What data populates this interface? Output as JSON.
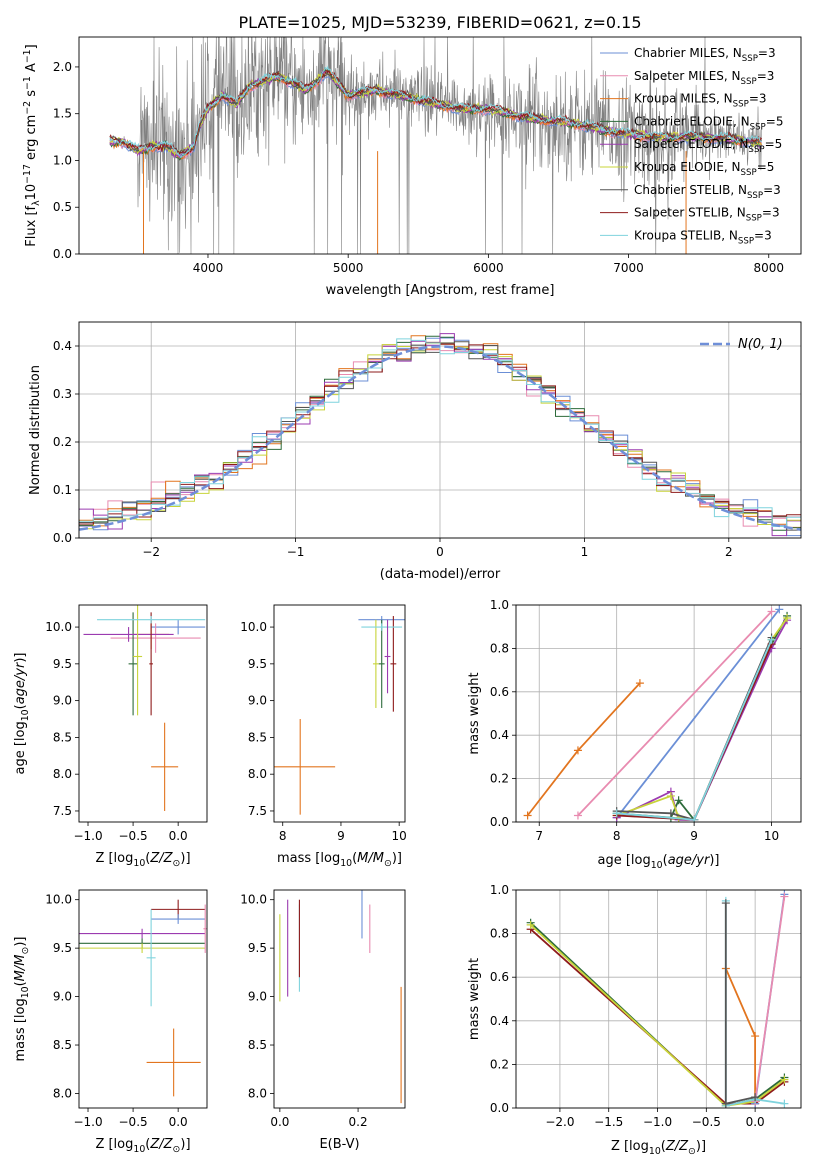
{
  "title": "PLATE=1025, MJD=53239, FIBERID=0621, z=0.15",
  "colors": {
    "chabrier_miles": "#6b8fd6",
    "salpeter_miles": "#e88bb0",
    "kroupa_miles": "#e2751f",
    "chabrier_elodie": "#2d6b3a",
    "salpeter_elodie": "#9b3bb0",
    "kroupa_elodie": "#c8d43a",
    "chabrier_stelib": "#555555",
    "salpeter_stelib": "#8e1b1b",
    "kroupa_stelib": "#7fd3dd",
    "data": "#808080",
    "normal": "#6f8fd8"
  },
  "chart_data": [
    {
      "id": "spectrum",
      "type": "line",
      "xlabel": "wavelength [Angstrom, rest frame]",
      "ylabel": "Flux [f",
      "xlim": [
        3080,
        8230
      ],
      "ylim": [
        0,
        2.32
      ],
      "xticks": [
        4000,
        5000,
        6000,
        7000,
        8000
      ],
      "yticks": [
        0.0,
        0.5,
        1.0,
        1.5,
        2.0
      ],
      "legend_position": "right",
      "legend": [
        {
          "prefix": "Chabrier MILES, N",
          "sub": "SSP",
          "suffix": "=3",
          "color_key": "chabrier_miles"
        },
        {
          "prefix": "Salpeter MILES, N",
          "sub": "SSP",
          "suffix": "=3",
          "color_key": "salpeter_miles"
        },
        {
          "prefix": "Kroupa MILES, N",
          "sub": "SSP",
          "suffix": "=3",
          "color_key": "kroupa_miles"
        },
        {
          "prefix": "Chabrier ELODIE, N",
          "sub": "SSP",
          "suffix": "=5",
          "color_key": "chabrier_elodie"
        },
        {
          "prefix": "Salpeter ELODIE, N",
          "sub": "SSP",
          "suffix": "=5",
          "color_key": "salpeter_elodie"
        },
        {
          "prefix": "Kroupa ELODIE, N",
          "sub": "SSP",
          "suffix": "=5",
          "color_key": "kroupa_elodie"
        },
        {
          "prefix": "Chabrier STELIB, N",
          "sub": "SSP",
          "suffix": "=3",
          "color_key": "chabrier_stelib"
        },
        {
          "prefix": "Salpeter STELIB, N",
          "sub": "SSP",
          "suffix": "=3",
          "color_key": "salpeter_stelib"
        },
        {
          "prefix": "Kroupa STELIB, N",
          "sub": "SSP",
          "suffix": "=3",
          "color_key": "kroupa_stelib"
        }
      ],
      "continuum": [
        [
          3300,
          1.2
        ],
        [
          3400,
          1.2
        ],
        [
          3500,
          1.1
        ],
        [
          3600,
          1.15
        ],
        [
          3700,
          1.15
        ],
        [
          3800,
          1.05
        ],
        [
          3900,
          1.15
        ],
        [
          3950,
          1.4
        ],
        [
          4000,
          1.55
        ],
        [
          4100,
          1.7
        ],
        [
          4200,
          1.6
        ],
        [
          4300,
          1.8
        ],
        [
          4500,
          1.9
        ],
        [
          4700,
          1.75
        ],
        [
          4850,
          1.95
        ],
        [
          5000,
          1.7
        ],
        [
          5200,
          1.75
        ],
        [
          5500,
          1.65
        ],
        [
          5800,
          1.55
        ],
        [
          6000,
          1.55
        ],
        [
          6300,
          1.45
        ],
        [
          6600,
          1.4
        ],
        [
          6900,
          1.3
        ],
        [
          7200,
          1.25
        ],
        [
          7500,
          1.25
        ],
        [
          7800,
          1.22
        ],
        [
          7950,
          1.18
        ]
      ]
    },
    {
      "id": "residuals",
      "type": "line",
      "xlabel": "(data-model)/error",
      "ylabel": "Normed distribution",
      "xlim": [
        -2.5,
        2.5
      ],
      "ylim": [
        0,
        0.45
      ],
      "xticks": [
        -2,
        -1,
        0,
        1,
        2
      ],
      "yticks": [
        0.0,
        0.1,
        0.2,
        0.3,
        0.4
      ],
      "grid": true,
      "legend_position": "upper right",
      "normal_label": "N(0, 1)",
      "bin_width": 0.1
    },
    {
      "id": "age_vs_z",
      "type": "scatter",
      "xlabel": "Z [log",
      "ylabel": "age  [log",
      "xlim": [
        -1.1,
        0.32
      ],
      "ylim": [
        7.35,
        10.3
      ],
      "xticks": [
        -1.0,
        -0.5,
        0.0
      ],
      "yticks": [
        7.5,
        8.0,
        8.5,
        9.0,
        9.5,
        10.0
      ],
      "points": [
        {
          "series": "kroupa_miles",
          "x": -0.15,
          "y": 8.1,
          "xerr": 0.15,
          "yerr": 0.6
        },
        {
          "series": "kroupa_miles",
          "x": -0.3,
          "y": 9.9,
          "xerr": 0.2,
          "yerr": 0.2
        },
        {
          "series": "chabrier_miles",
          "x": 0.0,
          "y": 10.0,
          "xerr": 0.3,
          "yerr": 0.1
        },
        {
          "series": "salpeter_miles",
          "x": -0.25,
          "y": 9.85,
          "xerr": 0.5,
          "yerr": 0.2
        },
        {
          "series": "chabrier_elodie",
          "x": -0.5,
          "y": 9.5,
          "xerr": 0.05,
          "yerr": 0.7
        },
        {
          "series": "salpeter_elodie",
          "x": -0.55,
          "y": 9.9,
          "xerr": 0.5,
          "yerr": 0.1
        },
        {
          "series": "kroupa_elodie",
          "x": -0.45,
          "y": 9.6,
          "xerr": 0.05,
          "yerr": 0.8
        },
        {
          "series": "salpeter_stelib",
          "x": -0.3,
          "y": 9.5,
          "xerr": 0.02,
          "yerr": 0.7
        },
        {
          "series": "kroupa_stelib",
          "x": -0.3,
          "y": 10.1,
          "xerr": 0.6,
          "yerr": 0.05
        }
      ]
    },
    {
      "id": "age_vs_mass",
      "type": "scatter",
      "xlabel": "mass [log",
      "ylabel": "",
      "xlim": [
        7.85,
        10.1
      ],
      "ylim": [
        7.35,
        10.3
      ],
      "xticks": [
        8,
        9,
        10
      ],
      "yticks": [
        7.5,
        8.0,
        8.5,
        9.0,
        9.5,
        10.0
      ],
      "points": [
        {
          "series": "kroupa_miles",
          "x": 8.3,
          "y": 8.1,
          "xerr": 0.6,
          "yerr": 0.65
        },
        {
          "series": "chabrier_miles",
          "x": 9.7,
          "y": 10.1,
          "xerr": 0.4,
          "yerr": 0.05
        },
        {
          "series": "kroupa_elodie",
          "x": 9.6,
          "y": 9.5,
          "xerr": 0.05,
          "yerr": 0.6
        },
        {
          "series": "salpeter_stelib",
          "x": 9.9,
          "y": 9.5,
          "xerr": 0.05,
          "yerr": 0.65
        },
        {
          "series": "chabrier_elodie",
          "x": 9.7,
          "y": 9.5,
          "xerr": 0.05,
          "yerr": 0.6
        },
        {
          "series": "kroupa_stelib",
          "x": 9.7,
          "y": 10.0,
          "xerr": 0.35,
          "yerr": 0.05
        },
        {
          "series": "salpeter_elodie",
          "x": 9.8,
          "y": 9.6,
          "xerr": 0.05,
          "yerr": 0.5
        }
      ]
    },
    {
      "id": "weight_vs_age",
      "type": "line",
      "xlabel": "age  [log",
      "ylabel": "mass weight",
      "xlim": [
        6.7,
        10.38
      ],
      "ylim": [
        0,
        1.0
      ],
      "xticks": [
        7,
        8,
        9,
        10
      ],
      "yticks": [
        0.0,
        0.2,
        0.4,
        0.6,
        0.8,
        1.0
      ],
      "grid": true,
      "series": [
        {
          "key": "chabrier_miles",
          "x": [
            8.0,
            10.1
          ],
          "y": [
            0.02,
            0.98
          ]
        },
        {
          "key": "salpeter_miles",
          "x": [
            7.5,
            10.0
          ],
          "y": [
            0.03,
            0.97
          ]
        },
        {
          "key": "kroupa_miles",
          "x": [
            6.85,
            7.5,
            8.3
          ],
          "y": [
            0.03,
            0.33,
            0.64
          ]
        },
        {
          "key": "chabrier_elodie",
          "x": [
            8.0,
            8.7,
            8.8,
            9.0,
            10.0,
            10.2
          ],
          "y": [
            0.04,
            0.02,
            0.1,
            0.01,
            0.82,
            0.95
          ]
        },
        {
          "key": "salpeter_elodie",
          "x": [
            8.0,
            8.7,
            8.8,
            9.0,
            10.0,
            10.2
          ],
          "y": [
            0.02,
            0.14,
            0.01,
            0.01,
            0.8,
            0.93
          ]
        },
        {
          "key": "kroupa_elodie",
          "x": [
            8.0,
            8.7,
            8.8,
            9.0,
            10.0,
            10.2
          ],
          "y": [
            0.03,
            0.12,
            0.02,
            0.01,
            0.84,
            0.94
          ]
        },
        {
          "key": "chabrier_stelib",
          "x": [
            8.0,
            8.7,
            9.0,
            10.0
          ],
          "y": [
            0.05,
            0.04,
            0.01,
            0.85
          ]
        },
        {
          "key": "salpeter_stelib",
          "x": [
            8.0,
            9.0,
            10.0
          ],
          "y": [
            0.03,
            0.01,
            0.82
          ]
        },
        {
          "key": "kroupa_stelib",
          "x": [
            8.0,
            9.0,
            10.0
          ],
          "y": [
            0.04,
            0.01,
            0.84
          ]
        }
      ]
    },
    {
      "id": "mass_vs_z",
      "type": "scatter",
      "xlabel": "Z [log",
      "ylabel": "mass [log",
      "xlim": [
        -1.1,
        0.32
      ],
      "ylim": [
        7.85,
        10.1
      ],
      "xticks": [
        -1.0,
        -0.5,
        0.0
      ],
      "yticks": [
        8.0,
        8.5,
        9.0,
        9.5,
        10.0
      ],
      "points": [
        {
          "series": "kroupa_miles",
          "x": -0.05,
          "y": 8.32,
          "xerr": 0.3,
          "yerr": 0.35
        },
        {
          "series": "salpeter_elodie",
          "x": -0.4,
          "y": 9.65,
          "xerr": 0.7,
          "yerr": 0.05
        },
        {
          "series": "chabrier_elodie",
          "x": -0.4,
          "y": 9.55,
          "xerr": 0.7,
          "yerr": 0.05
        },
        {
          "series": "kroupa_elodie",
          "x": -0.4,
          "y": 9.5,
          "xerr": 0.7,
          "yerr": 0.05
        },
        {
          "series": "salpeter_stelib",
          "x": 0.0,
          "y": 9.9,
          "xerr": 0.3,
          "yerr": 0.1
        },
        {
          "series": "chabrier_miles",
          "x": 0.0,
          "y": 9.8,
          "xerr": 0.3,
          "yerr": 0.05
        },
        {
          "series": "kroupa_stelib",
          "x": -0.3,
          "y": 9.4,
          "xerr": 0.05,
          "yerr": 0.5
        },
        {
          "series": "salpeter_miles",
          "x": 0.3,
          "y": 9.7,
          "xerr": 0.02,
          "yerr": 0.25
        }
      ]
    },
    {
      "id": "mass_vs_ebv",
      "type": "scatter",
      "xlabel": "E(B-V)",
      "ylabel": "",
      "xlim": [
        -0.015,
        0.32
      ],
      "ylim": [
        7.85,
        10.1
      ],
      "xticks": [
        0.0,
        0.2
      ],
      "yticks": [
        8.0,
        8.5,
        9.0,
        9.5,
        10.0
      ],
      "points": [
        {
          "series": "kroupa_miles",
          "x": 0.31,
          "y": 8.5,
          "xerr": 0.0,
          "yerr": 0.6
        },
        {
          "series": "chabrier_miles",
          "x": 0.21,
          "y": 9.85,
          "xerr": 0.0,
          "yerr": 0.25
        },
        {
          "series": "salpeter_miles",
          "x": 0.23,
          "y": 9.7,
          "xerr": 0.0,
          "yerr": 0.25
        },
        {
          "series": "kroupa_elodie",
          "x": 0.0,
          "y": 9.4,
          "xerr": 0.0,
          "yerr": 0.45
        },
        {
          "series": "salpeter_elodie",
          "x": 0.02,
          "y": 9.5,
          "xerr": 0.0,
          "yerr": 0.5
        },
        {
          "series": "kroupa_stelib",
          "x": 0.05,
          "y": 9.5,
          "xerr": 0.0,
          "yerr": 0.45
        },
        {
          "series": "salpeter_stelib",
          "x": 0.05,
          "y": 9.6,
          "xerr": 0.0,
          "yerr": 0.4
        }
      ]
    },
    {
      "id": "weight_vs_z",
      "type": "line",
      "xlabel": "Z [log",
      "ylabel": "mass weight",
      "xlim": [
        -2.45,
        0.47
      ],
      "ylim": [
        0,
        1.0
      ],
      "xticks": [
        -2.0,
        -1.5,
        -1.0,
        -0.5,
        0.0
      ],
      "yticks": [
        0.0,
        0.2,
        0.4,
        0.6,
        0.8,
        1.0
      ],
      "grid": true,
      "series": [
        {
          "key": "chabrier_elodie",
          "x": [
            -2.3,
            -0.3,
            0.0,
            0.3
          ],
          "y": [
            0.85,
            0.01,
            0.04,
            0.14
          ]
        },
        {
          "key": "salpeter_stelib",
          "x": [
            -2.3,
            -0.3,
            0.0,
            0.3
          ],
          "y": [
            0.82,
            0.02,
            0.02,
            0.12
          ]
        },
        {
          "key": "kroupa_elodie",
          "x": [
            -2.3,
            -0.3,
            0.0,
            0.3
          ],
          "y": [
            0.84,
            0.01,
            0.03,
            0.13
          ]
        },
        {
          "key": "kroupa_miles",
          "x": [
            -0.3,
            0.0,
            0.0
          ],
          "y": [
            0.64,
            0.33,
            0.03
          ]
        },
        {
          "key": "chabrier_miles",
          "x": [
            0.0,
            0.3
          ],
          "y": [
            0.02,
            0.98
          ]
        },
        {
          "key": "salpeter_miles",
          "x": [
            0.0,
            0.3
          ],
          "y": [
            0.03,
            0.97
          ]
        },
        {
          "key": "kroupa_stelib",
          "x": [
            -0.3,
            -0.3,
            0.0,
            0.3
          ],
          "y": [
            0.95,
            0.01,
            0.04,
            0.02
          ]
        },
        {
          "key": "chabrier_stelib",
          "x": [
            -0.3,
            -0.3,
            0.0
          ],
          "y": [
            0.94,
            0.02,
            0.05
          ]
        }
      ]
    }
  ]
}
